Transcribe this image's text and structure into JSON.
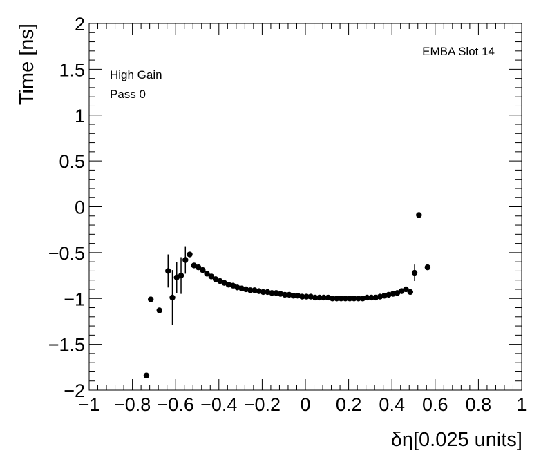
{
  "chart_data": {
    "type": "scatter",
    "title": "",
    "xlabel": "δη[0.025 units]",
    "ylabel": "Time [ns]",
    "xlim": [
      -1,
      1
    ],
    "ylim": [
      -2,
      2
    ],
    "x_ticks": [
      "−1",
      "−0.8",
      "−0.6",
      "−0.4",
      "−0.2",
      "0",
      "0.2",
      "0.4",
      "0.6",
      "0.8",
      "1"
    ],
    "x_tick_values": [
      -1,
      -0.8,
      -0.6,
      -0.4,
      -0.2,
      0,
      0.2,
      0.4,
      0.6,
      0.8,
      1
    ],
    "y_ticks": [
      "−2",
      "−1.5",
      "−1",
      "−0.5",
      "0",
      "0.5",
      "1",
      "1.5",
      "2"
    ],
    "y_tick_values": [
      -2,
      -1.5,
      -1,
      -0.5,
      0,
      0.5,
      1,
      1.5,
      2
    ],
    "grid": false,
    "annotations": {
      "top_right": "EMBA Slot 14",
      "gain": "High Gain",
      "pass": "Pass 0"
    },
    "series": [
      {
        "color": "#000000",
        "points": [
          {
            "x": -0.735,
            "y": -1.84,
            "err": 0
          },
          {
            "x": -0.715,
            "y": -1.01,
            "err": 0
          },
          {
            "x": -0.675,
            "y": -1.13,
            "err": 0
          },
          {
            "x": -0.635,
            "y": -0.7,
            "err": 0.18
          },
          {
            "x": -0.615,
            "y": -0.99,
            "err": 0.3
          },
          {
            "x": -0.595,
            "y": -0.77,
            "err": 0.17
          },
          {
            "x": -0.575,
            "y": -0.75,
            "err": 0.2
          },
          {
            "x": -0.555,
            "y": -0.58,
            "err": 0.15
          },
          {
            "x": -0.535,
            "y": -0.52,
            "err": 0.02
          },
          {
            "x": -0.515,
            "y": -0.64,
            "err": 0
          },
          {
            "x": -0.495,
            "y": -0.66,
            "err": 0
          },
          {
            "x": -0.475,
            "y": -0.69,
            "err": 0
          },
          {
            "x": -0.455,
            "y": -0.73,
            "err": 0
          },
          {
            "x": -0.435,
            "y": -0.76,
            "err": 0
          },
          {
            "x": -0.415,
            "y": -0.79,
            "err": 0
          },
          {
            "x": -0.395,
            "y": -0.81,
            "err": 0
          },
          {
            "x": -0.375,
            "y": -0.83,
            "err": 0
          },
          {
            "x": -0.355,
            "y": -0.85,
            "err": 0
          },
          {
            "x": -0.335,
            "y": -0.86,
            "err": 0
          },
          {
            "x": -0.315,
            "y": -0.88,
            "err": 0
          },
          {
            "x": -0.295,
            "y": -0.89,
            "err": 0
          },
          {
            "x": -0.275,
            "y": -0.9,
            "err": 0
          },
          {
            "x": -0.255,
            "y": -0.91,
            "err": 0
          },
          {
            "x": -0.235,
            "y": -0.91,
            "err": 0
          },
          {
            "x": -0.215,
            "y": -0.92,
            "err": 0
          },
          {
            "x": -0.195,
            "y": -0.93,
            "err": 0
          },
          {
            "x": -0.175,
            "y": -0.93,
            "err": 0
          },
          {
            "x": -0.155,
            "y": -0.94,
            "err": 0
          },
          {
            "x": -0.135,
            "y": -0.94,
            "err": 0
          },
          {
            "x": -0.115,
            "y": -0.95,
            "err": 0
          },
          {
            "x": -0.095,
            "y": -0.96,
            "err": 0
          },
          {
            "x": -0.075,
            "y": -0.96,
            "err": 0
          },
          {
            "x": -0.055,
            "y": -0.97,
            "err": 0
          },
          {
            "x": -0.035,
            "y": -0.97,
            "err": 0
          },
          {
            "x": -0.015,
            "y": -0.98,
            "err": 0
          },
          {
            "x": 0.005,
            "y": -0.98,
            "err": 0
          },
          {
            "x": 0.025,
            "y": -0.98,
            "err": 0
          },
          {
            "x": 0.045,
            "y": -0.99,
            "err": 0
          },
          {
            "x": 0.065,
            "y": -0.99,
            "err": 0
          },
          {
            "x": 0.085,
            "y": -0.99,
            "err": 0
          },
          {
            "x": 0.105,
            "y": -0.99,
            "err": 0
          },
          {
            "x": 0.125,
            "y": -1.0,
            "err": 0
          },
          {
            "x": 0.145,
            "y": -1.0,
            "err": 0
          },
          {
            "x": 0.165,
            "y": -1.0,
            "err": 0
          },
          {
            "x": 0.185,
            "y": -1.0,
            "err": 0
          },
          {
            "x": 0.205,
            "y": -1.0,
            "err": 0
          },
          {
            "x": 0.225,
            "y": -1.0,
            "err": 0
          },
          {
            "x": 0.245,
            "y": -1.0,
            "err": 0
          },
          {
            "x": 0.265,
            "y": -1.0,
            "err": 0
          },
          {
            "x": 0.285,
            "y": -0.99,
            "err": 0
          },
          {
            "x": 0.305,
            "y": -0.99,
            "err": 0
          },
          {
            "x": 0.325,
            "y": -0.99,
            "err": 0
          },
          {
            "x": 0.345,
            "y": -0.98,
            "err": 0
          },
          {
            "x": 0.365,
            "y": -0.97,
            "err": 0
          },
          {
            "x": 0.385,
            "y": -0.96,
            "err": 0
          },
          {
            "x": 0.405,
            "y": -0.95,
            "err": 0
          },
          {
            "x": 0.425,
            "y": -0.94,
            "err": 0
          },
          {
            "x": 0.445,
            "y": -0.92,
            "err": 0
          },
          {
            "x": 0.465,
            "y": -0.9,
            "err": 0
          },
          {
            "x": 0.485,
            "y": -0.93,
            "err": 0
          },
          {
            "x": 0.505,
            "y": -0.72,
            "err": 0.09
          },
          {
            "x": 0.525,
            "y": -0.09,
            "err": 0
          },
          {
            "x": 0.565,
            "y": -0.66,
            "err": 0
          }
        ]
      }
    ]
  }
}
